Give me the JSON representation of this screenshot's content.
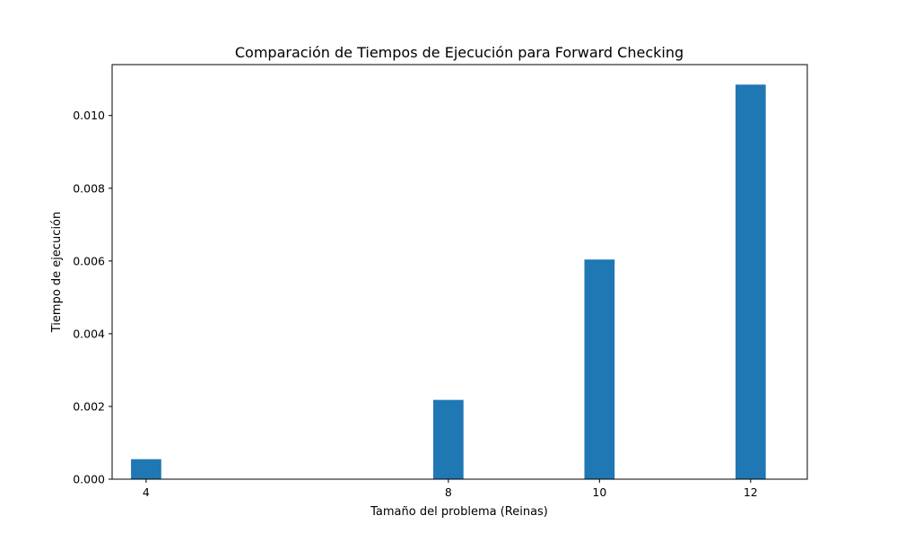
{
  "chart_data": {
    "type": "bar",
    "title": "Comparación de Tiempos de Ejecución para Forward Checking",
    "xlabel": "Tamaño del problema (Reinas)",
    "ylabel": "Tiempo de ejecución",
    "categories": [
      "4",
      "8",
      "10",
      "12"
    ],
    "x": [
      4,
      8,
      10,
      12
    ],
    "values": [
      0.00055,
      0.00218,
      0.00604,
      0.01085
    ],
    "xlim": [
      3.55,
      12.75
    ],
    "ylim": [
      0,
      0.0114
    ],
    "yticks": [
      0.0,
      0.002,
      0.004,
      0.006,
      0.008,
      0.01
    ],
    "ytick_labels": [
      "0.000",
      "0.002",
      "0.004",
      "0.006",
      "0.008",
      "0.010"
    ],
    "bar_color": "#1f77b4",
    "grid": false,
    "legend": "none"
  }
}
